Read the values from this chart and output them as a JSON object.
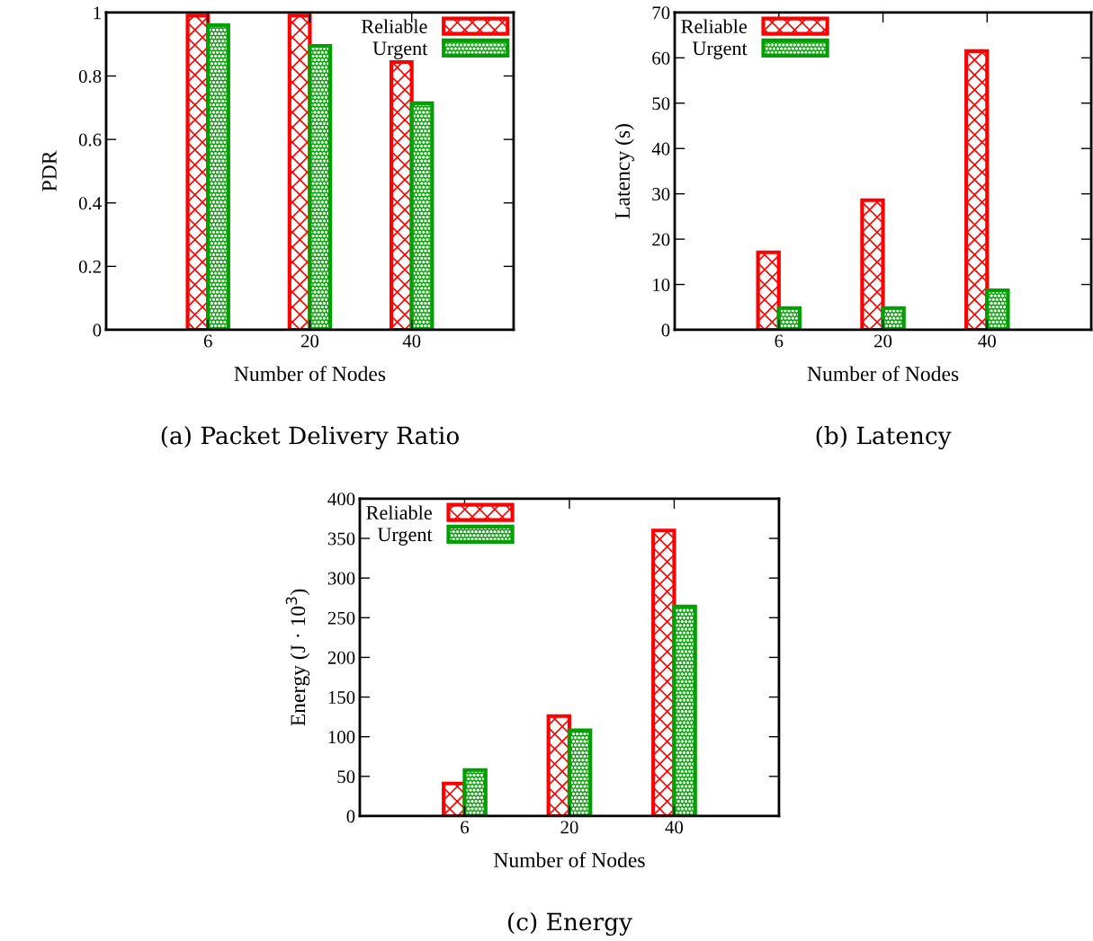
{
  "chart_data": [
    {
      "type": "bar",
      "title": "(a) Packet Delivery Ratio",
      "xlabel": "Number of Nodes",
      "ylabel": "PDR",
      "categories": [
        "6",
        "20",
        "40"
      ],
      "series": [
        {
          "name": "Reliable",
          "color": "#ff0000",
          "values": [
            0.99,
            0.99,
            0.844
          ]
        },
        {
          "name": "Urgent",
          "color": "#00a000",
          "values": [
            0.96,
            0.895,
            0.714
          ]
        }
      ],
      "ylim": [
        0,
        1
      ],
      "yticks": [
        0,
        0.2,
        0.4,
        0.6,
        0.8,
        1
      ],
      "legend": "top right",
      "grid": false
    },
    {
      "type": "bar",
      "title": "(b) Latency",
      "xlabel": "Number of Nodes",
      "ylabel": "Latency (s)",
      "categories": [
        "6",
        "20",
        "40"
      ],
      "series": [
        {
          "name": "Reliable",
          "color": "#ff0000",
          "values": [
            17.1,
            28.6,
            61.5
          ]
        },
        {
          "name": "Urgent",
          "color": "#00a000",
          "values": [
            4.8,
            4.8,
            8.7
          ]
        }
      ],
      "ylim": [
        0,
        70
      ],
      "yticks": [
        0,
        10,
        20,
        30,
        40,
        50,
        60,
        70
      ],
      "legend": "top left",
      "grid": false
    },
    {
      "type": "bar",
      "title": "(c) Energy",
      "xlabel": "Number of Nodes",
      "ylabel": "Energy (J · 10$^{3}$)",
      "categories": [
        "6",
        "20",
        "40"
      ],
      "series": [
        {
          "name": "Reliable",
          "color": "#ff0000",
          "values": [
            41,
            126,
            360
          ]
        },
        {
          "name": "Urgent",
          "color": "#00a000",
          "values": [
            58,
            108,
            264
          ]
        }
      ],
      "ylim": [
        0,
        400
      ],
      "yticks": [
        0,
        50,
        100,
        150,
        200,
        250,
        300,
        350,
        400
      ],
      "legend": "top left",
      "grid": false
    }
  ]
}
